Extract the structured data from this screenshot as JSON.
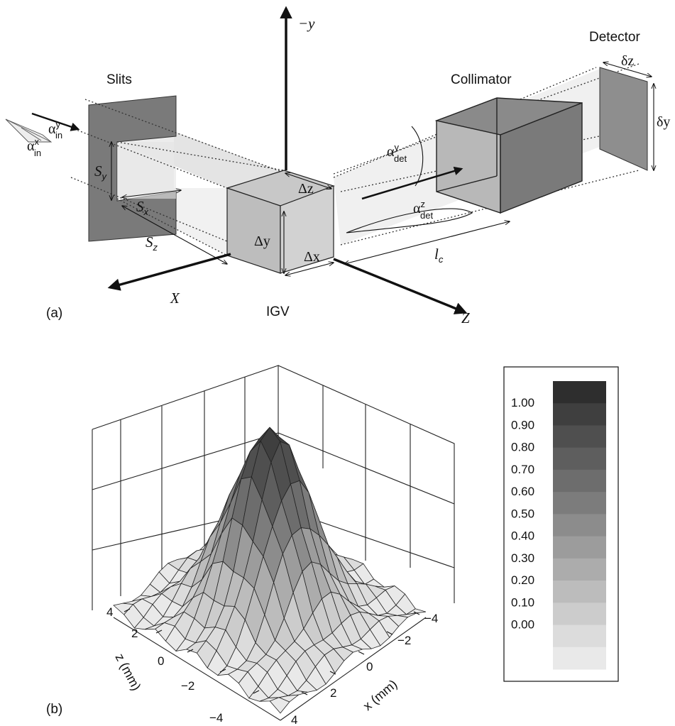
{
  "panel_a": {
    "label": "(a)",
    "slits": "Slits",
    "collimator": "Collimator",
    "detector": "Detector",
    "igv": "IGV",
    "axis_neg_y": "−y",
    "axis_x": "X",
    "axis_z": "Z",
    "sy_main": "S",
    "sy_sub": "y",
    "sx_main": "S",
    "sx_sub": "x",
    "sz_main": "S",
    "sz_sub": "z",
    "delta_x": "Δx",
    "delta_y": "Δy",
    "delta_z": "Δz",
    "small_delta_y": "δy",
    "small_delta_z": "δz",
    "alpha": "α",
    "alpha_in_x_sup": "x",
    "alpha_in_y_sup": "y",
    "alpha_in_sub": "in",
    "alpha_det_y_sup": "y",
    "alpha_det_z_sup": "z",
    "alpha_det_sub": "det",
    "lc_main": "l",
    "lc_sub": "c"
  },
  "panel_b": {
    "label": "(b)",
    "chart_data": {
      "type": "surface",
      "xlabel": "x (mm)",
      "zlabel": "z (mm)",
      "x_ticks": [
        "−4",
        "−2",
        "0",
        "2",
        "4"
      ],
      "z_ticks": [
        "4",
        "2",
        "0",
        "−2",
        "−4"
      ],
      "xlim": [
        -4,
        4
      ],
      "zlim": [
        -4,
        4
      ],
      "peak_value": 1.0,
      "peak_center": {
        "x": 0,
        "z": 0
      },
      "colorbar": {
        "labels": [
          "1.00",
          "0.90",
          "0.80",
          "0.70",
          "0.60",
          "0.50",
          "0.40",
          "0.30",
          "0.20",
          "0.10",
          "0.00"
        ],
        "colors": [
          "#2e2e2e",
          "#3f3f3f",
          "#4f4f4f",
          "#5e5e5e",
          "#6d6d6d",
          "#7c7c7c",
          "#8c8c8c",
          "#9c9c9c",
          "#acacac",
          "#bcbcbc",
          "#cccccc",
          "#dcdcdc",
          "#e9e9e9"
        ]
      }
    }
  }
}
